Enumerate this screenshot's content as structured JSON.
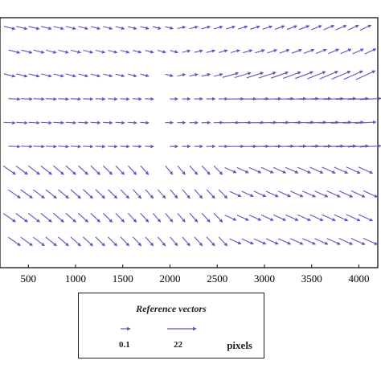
{
  "chart_data": {
    "type": "quiver",
    "title": "",
    "xlabel": "",
    "ylabel": "",
    "xlim": [
      200,
      4200
    ],
    "ylim": [
      0,
      10
    ],
    "xticks": [
      500,
      1000,
      1500,
      2000,
      2500,
      3000,
      3500,
      4000
    ],
    "grid": false,
    "vector_color": "#6a4fc0",
    "field": {
      "x_start": 300,
      "x_step": 130,
      "cols": 30,
      "y_start": 9.6,
      "y_step": -0.95,
      "rows": 10,
      "description_note": ""
    },
    "legend": {
      "placement": "below-plot",
      "title": "Reference vectors",
      "entries": [
        {
          "value": "0.1",
          "length_pixels": 0.1
        },
        {
          "value": "22",
          "length_pixels": 22
        }
      ],
      "unit": "pixels"
    }
  }
}
